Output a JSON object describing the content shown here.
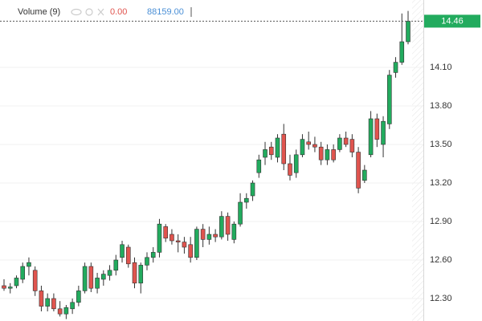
{
  "chart_data": {
    "type": "candlestick",
    "indicator": {
      "name": "Volume (9)",
      "value1": "0.00",
      "value2": "88159.00"
    },
    "last_price": 14.46,
    "up_color": "#22ab5e",
    "down_color": "#e0544e",
    "ylim": [
      12.125,
      14.625
    ],
    "yticks": [
      {
        "value": 12.3,
        "label": "12.30"
      },
      {
        "value": 12.6,
        "label": "12.60"
      },
      {
        "value": 12.9,
        "label": "12.90"
      },
      {
        "value": 13.2,
        "label": "13.20"
      },
      {
        "value": 13.5,
        "label": "13.50"
      },
      {
        "value": 13.8,
        "label": "13.80"
      },
      {
        "value": 14.1,
        "label": "14.10"
      }
    ],
    "grid": true,
    "open": [
      12.4,
      12.38,
      12.4,
      12.45,
      12.55,
      12.52,
      12.36,
      12.24,
      12.3,
      12.22,
      12.18,
      12.22,
      12.27,
      12.36,
      12.55,
      12.38,
      12.45,
      12.48,
      12.52,
      12.62,
      12.7,
      12.58,
      12.42,
      12.56,
      12.62,
      12.66,
      12.86,
      12.8,
      12.75,
      12.74,
      12.72,
      12.62,
      12.84,
      12.76,
      12.8,
      12.78,
      12.94,
      12.76,
      12.88,
      13.05,
      13.1,
      13.28,
      13.4,
      13.48,
      13.4,
      13.58,
      13.35,
      13.28,
      13.42,
      13.52,
      13.5,
      13.48,
      13.38,
      13.46,
      13.46,
      13.55,
      13.54,
      13.44,
      13.22,
      13.42,
      13.7,
      13.5,
      13.66,
      14.06,
      14.14,
      14.3
    ],
    "high": [
      12.45,
      12.42,
      12.48,
      12.58,
      12.62,
      12.55,
      12.4,
      12.34,
      12.34,
      12.28,
      12.25,
      12.3,
      12.4,
      12.58,
      12.58,
      12.5,
      12.52,
      12.56,
      12.64,
      12.75,
      12.72,
      12.62,
      12.58,
      12.66,
      12.7,
      12.92,
      12.88,
      12.84,
      12.8,
      12.78,
      12.78,
      12.86,
      12.88,
      12.86,
      12.84,
      12.98,
      12.97,
      12.9,
      13.12,
      13.12,
      13.22,
      13.42,
      13.52,
      13.52,
      13.58,
      13.66,
      13.42,
      13.46,
      13.58,
      13.6,
      13.56,
      13.52,
      13.5,
      13.5,
      13.58,
      13.6,
      13.58,
      13.48,
      13.34,
      13.76,
      13.74,
      13.72,
      14.08,
      14.18,
      14.52,
      14.54
    ],
    "low": [
      12.36,
      12.34,
      12.38,
      12.42,
      12.48,
      12.32,
      12.2,
      12.2,
      12.2,
      12.16,
      12.14,
      12.18,
      12.24,
      12.34,
      12.35,
      12.34,
      12.4,
      12.44,
      12.48,
      12.58,
      12.54,
      12.38,
      12.34,
      12.52,
      12.58,
      12.62,
      12.74,
      12.72,
      12.66,
      12.65,
      12.58,
      12.6,
      12.7,
      12.72,
      12.74,
      12.76,
      12.75,
      12.73,
      12.86,
      13.0,
      13.06,
      13.24,
      13.34,
      13.38,
      13.36,
      13.3,
      13.22,
      13.24,
      13.4,
      13.46,
      13.44,
      13.34,
      13.34,
      13.36,
      13.44,
      13.48,
      13.4,
      13.12,
      13.2,
      13.4,
      13.48,
      13.4,
      13.62,
      14.02,
      14.12,
      14.28
    ],
    "close": [
      12.38,
      12.39,
      12.46,
      12.55,
      12.58,
      12.36,
      12.24,
      12.3,
      12.22,
      12.18,
      12.23,
      12.27,
      12.36,
      12.55,
      12.38,
      12.46,
      12.49,
      12.52,
      12.6,
      12.72,
      12.57,
      12.42,
      12.56,
      12.62,
      12.66,
      12.88,
      12.77,
      12.75,
      12.74,
      12.7,
      12.62,
      12.84,
      12.76,
      12.8,
      12.78,
      12.94,
      12.8,
      12.88,
      13.05,
      13.08,
      13.2,
      13.38,
      13.46,
      13.42,
      13.55,
      13.35,
      13.26,
      13.42,
      13.54,
      13.5,
      13.48,
      13.38,
      13.46,
      13.38,
      13.55,
      13.5,
      13.44,
      13.16,
      13.3,
      13.7,
      13.54,
      13.68,
      14.04,
      14.14,
      14.3,
      14.46
    ]
  }
}
